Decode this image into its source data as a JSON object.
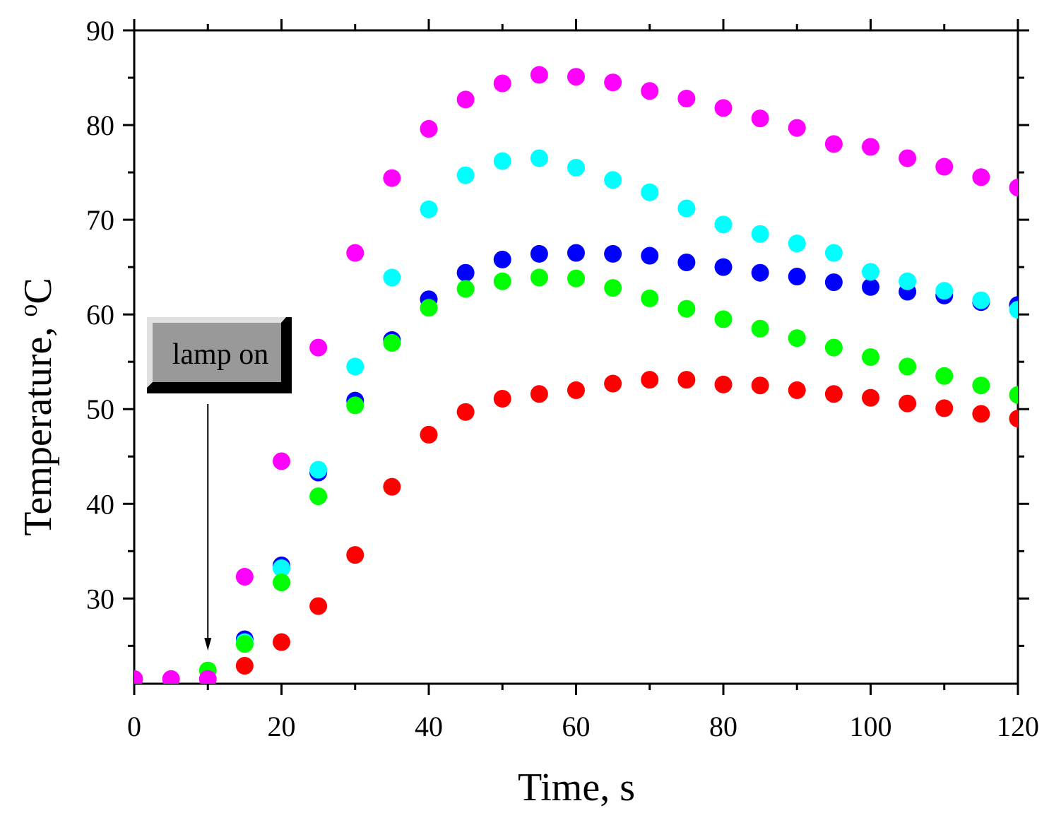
{
  "chart_data": {
    "type": "scatter",
    "title": "",
    "xlabel": "Time, s",
    "ylabel_main": "Temperature, ",
    "ylabel_sup": "o",
    "ylabel_unit": "C",
    "xlim": [
      0,
      120
    ],
    "ylim": [
      21,
      90
    ],
    "xticks": [
      0,
      20,
      40,
      60,
      80,
      100,
      120
    ],
    "yticks": [
      30,
      40,
      50,
      60,
      70,
      80,
      90
    ],
    "grid": false,
    "x": [
      0,
      5,
      10,
      15,
      20,
      25,
      30,
      35,
      40,
      45,
      50,
      55,
      60,
      65,
      70,
      75,
      80,
      85,
      90,
      95,
      100,
      105,
      110,
      115,
      120
    ],
    "series": [
      {
        "name": "blue",
        "color": "#0000ff",
        "x": [
          15,
          20,
          25,
          30,
          35,
          40,
          45,
          50,
          55,
          60,
          65,
          70,
          75,
          80,
          85,
          90,
          95,
          100,
          105,
          110,
          115,
          120
        ],
        "values": [
          25.7,
          33.5,
          43.3,
          50.9,
          57.3,
          61.6,
          64.4,
          65.8,
          66.4,
          66.5,
          66.4,
          66.2,
          65.5,
          65.0,
          64.4,
          64.0,
          63.4,
          62.9,
          62.4,
          62.0,
          61.3,
          61.0
        ]
      },
      {
        "name": "cyan",
        "color": "#00ffff",
        "x": [
          15,
          20,
          25,
          30,
          35,
          40,
          45,
          50,
          55,
          60,
          65,
          70,
          75,
          80,
          85,
          90,
          95,
          100,
          105,
          110,
          115,
          120
        ],
        "values": [
          25.4,
          33.2,
          43.6,
          54.5,
          63.9,
          71.1,
          74.7,
          76.2,
          76.5,
          75.5,
          74.2,
          72.9,
          71.2,
          69.5,
          68.5,
          67.5,
          66.5,
          64.5,
          63.5,
          62.5,
          61.5,
          60.5
        ]
      },
      {
        "name": "green",
        "color": "#00ff00",
        "x": [
          10,
          15,
          20,
          25,
          30,
          35,
          40,
          45,
          50,
          55,
          60,
          65,
          70,
          75,
          80,
          85,
          90,
          95,
          100,
          105,
          110,
          115,
          120
        ],
        "values": [
          22.4,
          25.2,
          31.7,
          40.8,
          50.4,
          57.0,
          60.7,
          62.7,
          63.5,
          63.9,
          63.8,
          62.8,
          61.7,
          60.6,
          59.5,
          58.5,
          57.5,
          56.5,
          55.5,
          54.5,
          53.5,
          52.5,
          51.5
        ]
      },
      {
        "name": "red",
        "color": "#ff0000",
        "x": [
          15,
          20,
          25,
          30,
          35,
          40,
          45,
          50,
          55,
          60,
          65,
          70,
          75,
          80,
          85,
          90,
          95,
          100,
          105,
          110,
          115,
          120
        ],
        "values": [
          22.9,
          25.4,
          29.2,
          34.6,
          41.8,
          47.3,
          49.7,
          51.1,
          51.6,
          52.0,
          52.7,
          53.1,
          53.1,
          52.6,
          52.5,
          52.0,
          51.6,
          51.2,
          50.6,
          50.1,
          49.5,
          49.0
        ]
      },
      {
        "name": "magenta",
        "color": "#ff00ff",
        "x": [
          0,
          5,
          10,
          15,
          20,
          25,
          30,
          35,
          40,
          45,
          50,
          55,
          60,
          65,
          70,
          75,
          80,
          85,
          90,
          95,
          100,
          105,
          110,
          115,
          120
        ],
        "values": [
          21.5,
          21.5,
          21.5,
          32.3,
          44.5,
          56.5,
          66.5,
          74.4,
          79.6,
          82.7,
          84.4,
          85.3,
          85.1,
          84.5,
          83.6,
          82.8,
          81.8,
          80.7,
          79.7,
          78.0,
          77.7,
          76.5,
          75.6,
          74.5,
          73.4
        ]
      }
    ],
    "annotation": {
      "text": "lamp on",
      "arrow_x": 10,
      "arrow_y_tip": 24.5
    }
  }
}
